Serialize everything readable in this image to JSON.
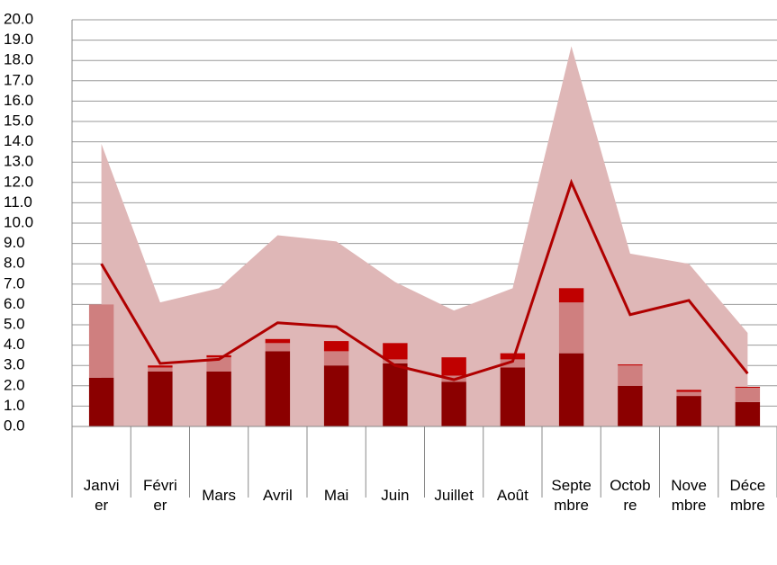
{
  "chart_data": {
    "type": "combo",
    "categories": [
      "Janvier",
      "Février",
      "Mars",
      "Avril",
      "Mai",
      "Juin",
      "Juillet",
      "Août",
      "Septembre",
      "Octobre",
      "Novembre",
      "Décembre"
    ],
    "area": {
      "color": "#dfb7b7",
      "values": [
        13.9,
        6.1,
        6.8,
        9.4,
        9.1,
        7.1,
        5.7,
        6.8,
        18.7,
        8.5,
        8.0,
        4.6
      ]
    },
    "series": [
      {
        "color": "#8b0000",
        "values": [
          2.4,
          2.7,
          2.7,
          3.7,
          3.0,
          3.1,
          2.2,
          2.9,
          3.6,
          2.0,
          1.5,
          1.2
        ]
      },
      {
        "color": "#cf7f7f",
        "values": [
          3.6,
          0.2,
          0.7,
          0.4,
          0.7,
          0.2,
          0.3,
          0.4,
          2.5,
          1.0,
          0.2,
          0.7
        ]
      },
      {
        "color": "#c00000",
        "values": [
          0,
          0.1,
          0.1,
          0.2,
          0.5,
          0.8,
          0.9,
          0.3,
          0.7,
          0.05,
          0.1,
          0.05
        ]
      }
    ],
    "line": {
      "color": "#b00000",
      "values": [
        8.0,
        3.1,
        3.3,
        5.1,
        4.9,
        3.0,
        2.3,
        3.2,
        12.0,
        5.5,
        6.2,
        2.6
      ]
    },
    "ylim": [
      0,
      20
    ],
    "yticks": [
      {
        "value": 0,
        "label": "0.0"
      },
      {
        "value": 1,
        "label": "1.0"
      },
      {
        "value": 2,
        "label": "2.0"
      },
      {
        "value": 3,
        "label": "3.0"
      },
      {
        "value": 4,
        "label": "4.0"
      },
      {
        "value": 5,
        "label": "5.0"
      },
      {
        "value": 6,
        "label": "6.0"
      },
      {
        "value": 7,
        "label": "7.0"
      },
      {
        "value": 8,
        "label": "8.0"
      },
      {
        "value": 9,
        "label": "9.0"
      },
      {
        "value": 10,
        "label": "10.0"
      },
      {
        "value": 11,
        "label": "11.0"
      },
      {
        "value": 12,
        "label": "12.0"
      },
      {
        "value": 13,
        "label": "13.0"
      },
      {
        "value": 14,
        "label": "14.0"
      },
      {
        "value": 15,
        "label": "15.0"
      },
      {
        "value": 16,
        "label": "16.0"
      },
      {
        "value": 17,
        "label": "17.0"
      },
      {
        "value": 18,
        "label": "18.0"
      },
      {
        "value": 19,
        "label": "19.0"
      },
      {
        "value": 20,
        "label": "20.0"
      }
    ],
    "grid": true
  }
}
